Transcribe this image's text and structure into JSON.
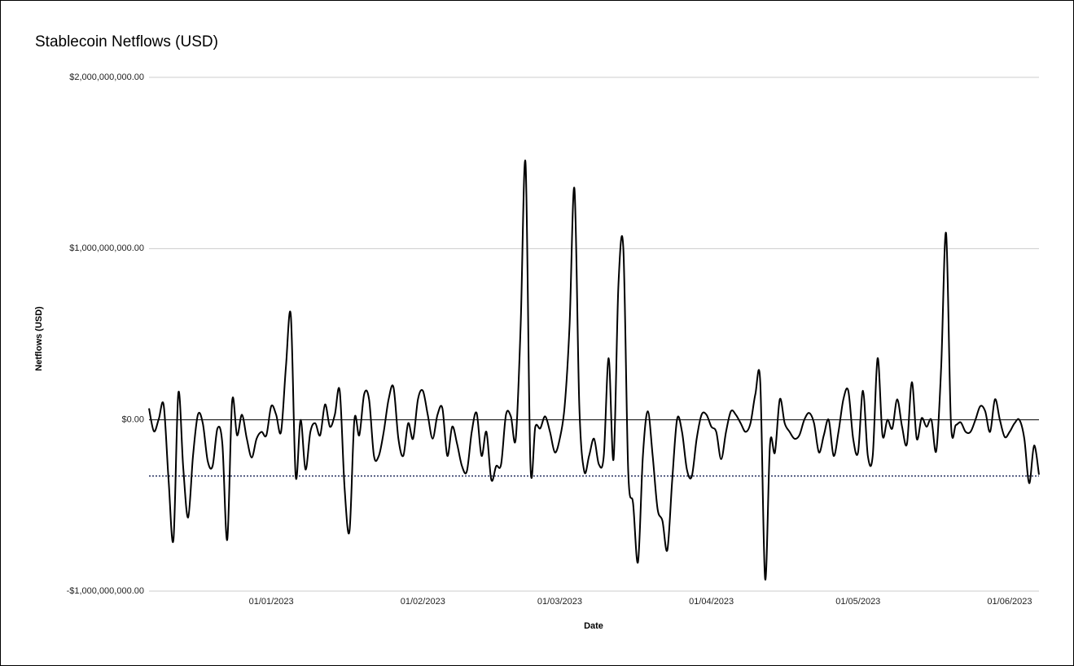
{
  "chart_data": {
    "type": "line",
    "title": "Stablecoin Netflows (USD)",
    "x_label": "Date",
    "y_label": "Netflows (USD)",
    "color": "#000000",
    "grid": true,
    "ylim": [
      -1000000000,
      2000000000
    ],
    "yticks": [
      {
        "value": -1000000000,
        "label": "-$1,000,000,000.00"
      },
      {
        "value": 0,
        "label": "$0.00"
      },
      {
        "value": 1000000000,
        "label": "$1,000,000,000.00"
      },
      {
        "value": 2000000000,
        "label": "$2,000,000,000.00"
      }
    ],
    "xticks": [
      "01/01/2023",
      "01/02/2023",
      "01/03/2023",
      "01/04/2023",
      "01/05/2023",
      "01/06/2023"
    ],
    "reference_line": {
      "value": -328000000,
      "color": "#1f2a5a",
      "style": "dotted"
    },
    "x": [
      "07/12/2022",
      "08/12/2022",
      "09/12/2022",
      "10/12/2022",
      "11/12/2022",
      "12/12/2022",
      "13/12/2022",
      "14/12/2022",
      "15/12/2022",
      "16/12/2022",
      "17/12/2022",
      "18/12/2022",
      "19/12/2022",
      "20/12/2022",
      "21/12/2022",
      "22/12/2022",
      "23/12/2022",
      "24/12/2022",
      "25/12/2022",
      "26/12/2022",
      "27/12/2022",
      "28/12/2022",
      "29/12/2022",
      "30/12/2022",
      "31/12/2022",
      "01/01/2023",
      "02/01/2023",
      "03/01/2023",
      "04/01/2023",
      "05/01/2023",
      "06/01/2023",
      "07/01/2023",
      "08/01/2023",
      "09/01/2023",
      "10/01/2023",
      "11/01/2023",
      "12/01/2023",
      "13/01/2023",
      "14/01/2023",
      "15/01/2023",
      "16/01/2023",
      "17/01/2023",
      "18/01/2023",
      "19/01/2023",
      "20/01/2023",
      "21/01/2023",
      "22/01/2023",
      "23/01/2023",
      "24/01/2023",
      "25/01/2023",
      "26/01/2023",
      "27/01/2023",
      "28/01/2023",
      "29/01/2023",
      "30/01/2023",
      "31/01/2023",
      "01/02/2023",
      "02/02/2023",
      "03/02/2023",
      "04/02/2023",
      "05/02/2023",
      "06/02/2023",
      "07/02/2023",
      "08/02/2023",
      "09/02/2023",
      "10/02/2023",
      "11/02/2023",
      "12/02/2023",
      "13/02/2023",
      "14/02/2023",
      "15/02/2023",
      "16/02/2023",
      "17/02/2023",
      "18/02/2023",
      "19/02/2023",
      "20/02/2023",
      "21/02/2023",
      "22/02/2023",
      "23/02/2023",
      "24/02/2023",
      "25/02/2023",
      "26/02/2023",
      "27/02/2023",
      "28/02/2023",
      "01/03/2023",
      "02/03/2023",
      "03/03/2023",
      "04/03/2023",
      "05/03/2023",
      "06/03/2023",
      "07/03/2023",
      "08/03/2023",
      "09/03/2023",
      "10/03/2023",
      "11/03/2023",
      "12/03/2023",
      "13/03/2023",
      "14/03/2023",
      "15/03/2023",
      "16/03/2023",
      "17/03/2023",
      "18/03/2023",
      "19/03/2023",
      "20/03/2023",
      "21/03/2023",
      "22/03/2023",
      "23/03/2023",
      "24/03/2023",
      "25/03/2023",
      "26/03/2023",
      "27/03/2023",
      "28/03/2023",
      "29/03/2023",
      "30/03/2023",
      "31/03/2023",
      "01/04/2023",
      "02/04/2023",
      "03/04/2023",
      "04/04/2023",
      "05/04/2023",
      "06/04/2023",
      "07/04/2023",
      "08/04/2023",
      "09/04/2023",
      "10/04/2023",
      "11/04/2023",
      "12/04/2023",
      "13/04/2023",
      "14/04/2023",
      "15/04/2023",
      "16/04/2023",
      "17/04/2023",
      "18/04/2023",
      "19/04/2023",
      "20/04/2023",
      "21/04/2023",
      "22/04/2023",
      "23/04/2023",
      "24/04/2023",
      "25/04/2023",
      "26/04/2023",
      "27/04/2023",
      "28/04/2023",
      "29/04/2023",
      "30/04/2023",
      "01/05/2023",
      "02/05/2023",
      "03/05/2023",
      "04/05/2023",
      "05/05/2023",
      "06/05/2023",
      "07/05/2023",
      "08/05/2023",
      "09/05/2023",
      "10/05/2023",
      "11/05/2023",
      "12/05/2023",
      "13/05/2023",
      "14/05/2023",
      "15/05/2023",
      "16/05/2023",
      "17/05/2023",
      "18/05/2023",
      "19/05/2023",
      "20/05/2023",
      "21/05/2023",
      "22/05/2023",
      "23/05/2023",
      "24/05/2023",
      "25/05/2023",
      "26/05/2023",
      "27/05/2023",
      "28/05/2023",
      "29/05/2023",
      "30/05/2023",
      "31/05/2023",
      "01/06/2023",
      "02/06/2023",
      "03/06/2023",
      "04/06/2023",
      "05/06/2023",
      "06/06/2023",
      "07/06/2023"
    ],
    "values": [
      67000000,
      -67000000,
      5000000,
      86000000,
      -350000000,
      -700000000,
      157000000,
      -280000000,
      -570000000,
      -210000000,
      30000000,
      -20000000,
      -240000000,
      -270000000,
      -50000000,
      -140000000,
      -700000000,
      110000000,
      -90000000,
      30000000,
      -110000000,
      -220000000,
      -110000000,
      -70000000,
      -90000000,
      80000000,
      30000000,
      -70000000,
      310000000,
      610000000,
      -330000000,
      0,
      -290000000,
      -70000000,
      -20000000,
      -90000000,
      90000000,
      -40000000,
      30000000,
      170000000,
      -400000000,
      -650000000,
      0,
      -90000000,
      150000000,
      120000000,
      -210000000,
      -210000000,
      -70000000,
      120000000,
      190000000,
      -110000000,
      -210000000,
      -20000000,
      -110000000,
      120000000,
      170000000,
      30000000,
      -110000000,
      30000000,
      67000000,
      -210000000,
      -40000000,
      -140000000,
      -270000000,
      -300000000,
      -70000000,
      40000000,
      -210000000,
      -70000000,
      -350000000,
      -270000000,
      -260000000,
      30000000,
      20000000,
      -110000000,
      550000000,
      1500000000,
      -260000000,
      -40000000,
      -50000000,
      20000000,
      -70000000,
      -190000000,
      -110000000,
      80000000,
      550000000,
      1350000000,
      80000000,
      -300000000,
      -210000000,
      -110000000,
      -260000000,
      -210000000,
      360000000,
      -230000000,
      790000000,
      1000000000,
      -300000000,
      -490000000,
      -830000000,
      -210000000,
      50000000,
      -210000000,
      -520000000,
      -590000000,
      -760000000,
      -350000000,
      5000000,
      -70000000,
      -290000000,
      -330000000,
      -110000000,
      30000000,
      30000000,
      -40000000,
      -70000000,
      -230000000,
      -70000000,
      50000000,
      30000000,
      -20000000,
      -70000000,
      -20000000,
      150000000,
      220000000,
      -930000000,
      -140000000,
      -190000000,
      120000000,
      -20000000,
      -70000000,
      -110000000,
      -90000000,
      0,
      40000000,
      -20000000,
      -190000000,
      -90000000,
      0,
      -210000000,
      -70000000,
      120000000,
      170000000,
      -110000000,
      -190000000,
      170000000,
      -210000000,
      -210000000,
      360000000,
      -90000000,
      0,
      -50000000,
      120000000,
      -40000000,
      -140000000,
      220000000,
      -110000000,
      10000000,
      -40000000,
      0,
      -180000000,
      310000000,
      1090000000,
      -20000000,
      -30000000,
      -15000000,
      -70000000,
      -70000000,
      0,
      80000000,
      50000000,
      -70000000,
      120000000,
      0,
      -100000000,
      -70000000,
      -20000000,
      0,
      -110000000,
      -370000000,
      -150000000,
      -320000000
    ]
  }
}
